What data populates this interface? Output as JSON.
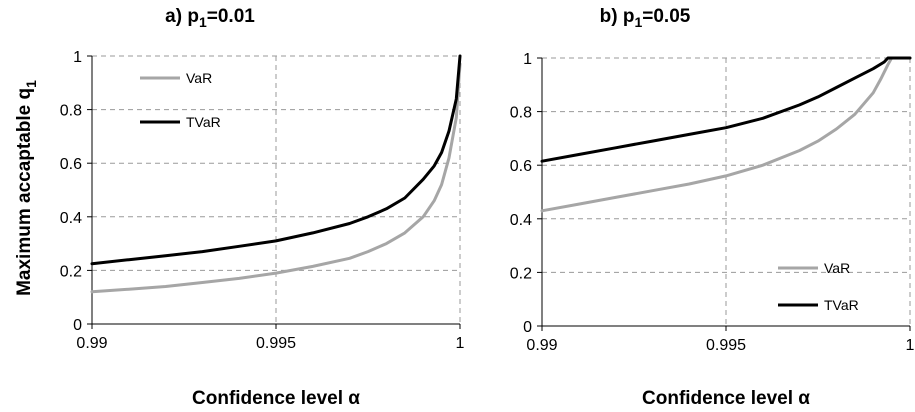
{
  "ylabel": {
    "main": "Maximum accaptable q",
    "sub": "1"
  },
  "chart_data": [
    {
      "type": "line",
      "title": {
        "main": "a) p",
        "sub": "1",
        "rest": "=0.01"
      },
      "xlabel": "Confidence level α",
      "xlim": [
        0.99,
        1.0
      ],
      "ylim": [
        0,
        1
      ],
      "xticks": [
        "0.99",
        "0.995",
        "1"
      ],
      "yticks": [
        "0",
        "0.2",
        "0.4",
        "0.6",
        "0.8",
        "1"
      ],
      "grid": true,
      "legend_position": "top-left",
      "series": [
        {
          "name": "VaR",
          "color": "#a6a6a6",
          "x": [
            0.99,
            0.991,
            0.992,
            0.993,
            0.994,
            0.995,
            0.996,
            0.997,
            0.9975,
            0.998,
            0.9985,
            0.999,
            0.9993,
            0.9995,
            0.9997,
            0.9999,
            1.0
          ],
          "y": [
            0.12,
            0.13,
            0.14,
            0.155,
            0.17,
            0.19,
            0.215,
            0.245,
            0.27,
            0.3,
            0.34,
            0.4,
            0.46,
            0.52,
            0.62,
            0.77,
            0.97
          ]
        },
        {
          "name": "TVaR",
          "color": "#000000",
          "x": [
            0.99,
            0.991,
            0.992,
            0.993,
            0.994,
            0.995,
            0.996,
            0.997,
            0.9975,
            0.998,
            0.9985,
            0.999,
            0.9993,
            0.9995,
            0.9997,
            0.9999,
            1.0
          ],
          "y": [
            0.225,
            0.24,
            0.255,
            0.27,
            0.29,
            0.31,
            0.34,
            0.375,
            0.4,
            0.43,
            0.47,
            0.54,
            0.59,
            0.64,
            0.72,
            0.84,
            1.0
          ]
        }
      ]
    },
    {
      "type": "line",
      "title": {
        "main": "b) p",
        "sub": "1",
        "rest": "=0.05"
      },
      "xlabel": "Confidence level α",
      "xlim": [
        0.99,
        1.0
      ],
      "ylim": [
        0,
        1
      ],
      "xticks": [
        "0.99",
        "0.995",
        "1"
      ],
      "yticks": [
        "0",
        "0.2",
        "0.4",
        "0.6",
        "0.8",
        "1"
      ],
      "grid": true,
      "legend_position": "bottom-right",
      "series": [
        {
          "name": "VaR",
          "color": "#a6a6a6",
          "x": [
            0.99,
            0.991,
            0.992,
            0.993,
            0.994,
            0.995,
            0.996,
            0.997,
            0.9975,
            0.998,
            0.9985,
            0.999,
            0.9992,
            0.9994,
            0.9995,
            0.9996,
            1.0
          ],
          "y": [
            0.43,
            0.455,
            0.48,
            0.505,
            0.53,
            0.56,
            0.6,
            0.655,
            0.69,
            0.735,
            0.79,
            0.87,
            0.92,
            0.975,
            1.0,
            1.0,
            1.0
          ]
        },
        {
          "name": "TVaR",
          "color": "#000000",
          "x": [
            0.99,
            0.991,
            0.992,
            0.993,
            0.994,
            0.995,
            0.996,
            0.997,
            0.9975,
            0.998,
            0.9985,
            0.999,
            0.9993,
            0.9994,
            0.9995,
            1.0
          ],
          "y": [
            0.615,
            0.64,
            0.665,
            0.69,
            0.715,
            0.74,
            0.775,
            0.825,
            0.855,
            0.89,
            0.925,
            0.96,
            0.985,
            1.0,
            1.0,
            1.0
          ]
        }
      ]
    }
  ]
}
